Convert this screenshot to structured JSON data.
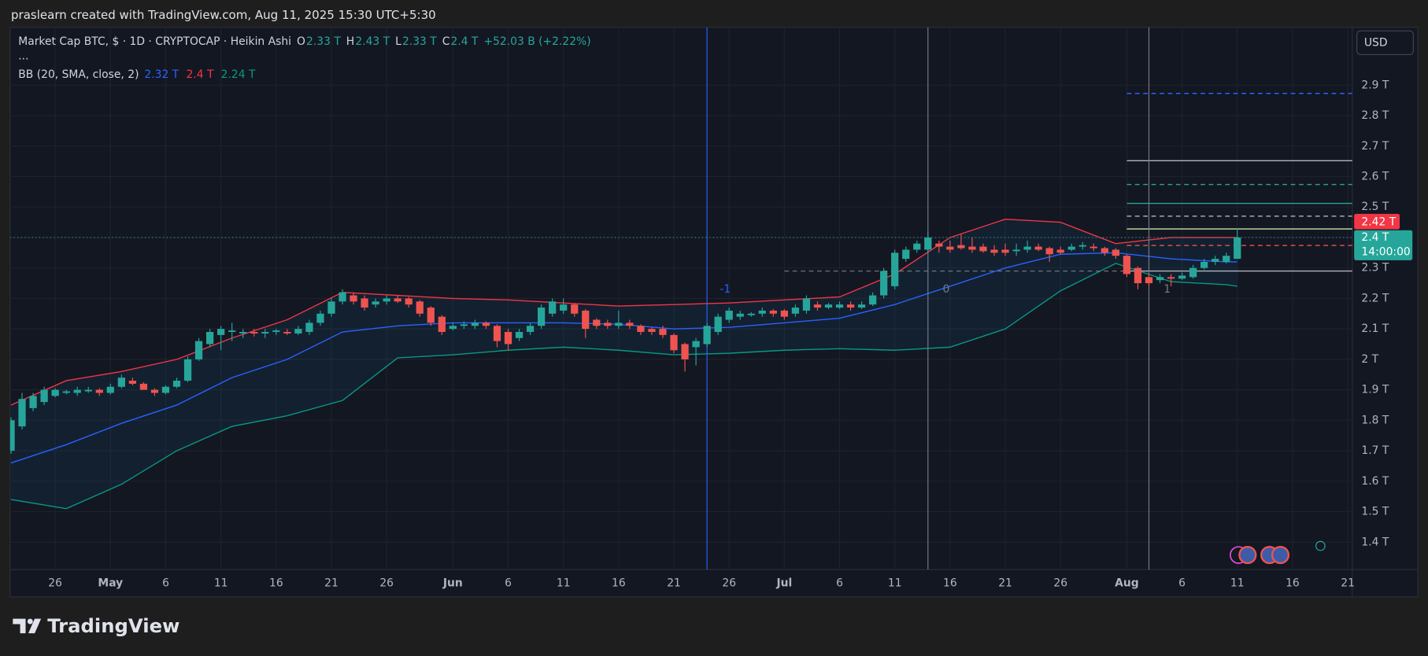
{
  "header": "praslearn created with TradingView.com, Aug 11, 2025 15:30 UTC+5:30",
  "brand": "TradingView",
  "currency": "USD",
  "chart_data": {
    "type": "candlestick",
    "legend": {
      "symbol": "Market Cap BTC, $ · 1D · CRYPTOCAP · Heikin Ashi",
      "items": [
        {
          "key": "O",
          "value": 2.33,
          "label": "2.33 T"
        },
        {
          "key": "H",
          "value": 2.43,
          "label": "2.43 T"
        },
        {
          "key": "L",
          "value": 2.33,
          "label": "2.33 T"
        },
        {
          "key": "C",
          "value": 2.4,
          "label": "2.4 T"
        }
      ],
      "change": "+52.03 B (+2.22%)",
      "more": "..."
    },
    "up_color": "#26a69a",
    "down_color": "#ef5350",
    "x": [
      "2025-04-22",
      "2025-04-23",
      "2025-04-24",
      "2025-04-25",
      "2025-04-26",
      "2025-04-27",
      "2025-04-28",
      "2025-04-29",
      "2025-04-30",
      "2025-05-01",
      "2025-05-02",
      "2025-05-03",
      "2025-05-04",
      "2025-05-05",
      "2025-05-06",
      "2025-05-07",
      "2025-05-08",
      "2025-05-09",
      "2025-05-10",
      "2025-05-11",
      "2025-05-12",
      "2025-05-13",
      "2025-05-14",
      "2025-05-15",
      "2025-05-16",
      "2025-05-17",
      "2025-05-18",
      "2025-05-19",
      "2025-05-20",
      "2025-05-21",
      "2025-05-22",
      "2025-05-23",
      "2025-05-24",
      "2025-05-25",
      "2025-05-26",
      "2025-05-27",
      "2025-05-28",
      "2025-05-29",
      "2025-05-30",
      "2025-05-31",
      "2025-06-01",
      "2025-06-02",
      "2025-06-03",
      "2025-06-04",
      "2025-06-05",
      "2025-06-06",
      "2025-06-07",
      "2025-06-08",
      "2025-06-09",
      "2025-06-10",
      "2025-06-11",
      "2025-06-12",
      "2025-06-13",
      "2025-06-14",
      "2025-06-15",
      "2025-06-16",
      "2025-06-17",
      "2025-06-18",
      "2025-06-19",
      "2025-06-20",
      "2025-06-21",
      "2025-06-22",
      "2025-06-23",
      "2025-06-24",
      "2025-06-25",
      "2025-06-26",
      "2025-06-27",
      "2025-06-28",
      "2025-06-29",
      "2025-06-30",
      "2025-07-01",
      "2025-07-02",
      "2025-07-03",
      "2025-07-04",
      "2025-07-05",
      "2025-07-06",
      "2025-07-07",
      "2025-07-08",
      "2025-07-09",
      "2025-07-10",
      "2025-07-11",
      "2025-07-12",
      "2025-07-13",
      "2025-07-14",
      "2025-07-15",
      "2025-07-16",
      "2025-07-17",
      "2025-07-18",
      "2025-07-19",
      "2025-07-20",
      "2025-07-21",
      "2025-07-22",
      "2025-07-23",
      "2025-07-24",
      "2025-07-25",
      "2025-07-26",
      "2025-07-27",
      "2025-07-28",
      "2025-07-29",
      "2025-07-30",
      "2025-07-31",
      "2025-08-01",
      "2025-08-02",
      "2025-08-03",
      "2025-08-04",
      "2025-08-05",
      "2025-08-06",
      "2025-08-07",
      "2025-08-08",
      "2025-08-09",
      "2025-08-10",
      "2025-08-11"
    ],
    "open": [
      1.7,
      1.78,
      1.84,
      1.86,
      1.88,
      1.89,
      1.89,
      1.895,
      1.9,
      1.89,
      1.91,
      1.93,
      1.92,
      1.9,
      1.89,
      1.91,
      1.93,
      2.0,
      2.05,
      2.08,
      2.09,
      2.085,
      2.09,
      2.085,
      2.09,
      2.09,
      2.085,
      2.09,
      2.12,
      2.15,
      2.19,
      2.21,
      2.2,
      2.18,
      2.19,
      2.2,
      2.2,
      2.19,
      2.17,
      2.14,
      2.1,
      2.11,
      2.11,
      2.12,
      2.11,
      2.09,
      2.07,
      2.09,
      2.11,
      2.15,
      2.16,
      2.18,
      2.16,
      2.13,
      2.12,
      2.11,
      2.12,
      2.11,
      2.1,
      2.1,
      2.08,
      2.05,
      2.04,
      2.05,
      2.09,
      2.13,
      2.14,
      2.145,
      2.15,
      2.16,
      2.16,
      2.15,
      2.16,
      2.18,
      2.17,
      2.17,
      2.18,
      2.17,
      2.18,
      2.21,
      2.24,
      2.33,
      2.36,
      2.36,
      2.38,
      2.37,
      2.375,
      2.37,
      2.37,
      2.36,
      2.36,
      2.355,
      2.36,
      2.37,
      2.365,
      2.36,
      2.36,
      2.37,
      2.37,
      2.365,
      2.36,
      2.34,
      2.3,
      2.27,
      2.26,
      2.27,
      2.265,
      2.27,
      2.3,
      2.32,
      2.32,
      2.33
    ],
    "high": [
      1.81,
      1.89,
      1.89,
      1.91,
      1.905,
      1.9,
      1.91,
      1.91,
      1.905,
      1.92,
      1.95,
      1.94,
      1.925,
      1.905,
      1.915,
      1.94,
      2.01,
      2.07,
      2.1,
      2.11,
      2.12,
      2.1,
      2.1,
      2.1,
      2.1,
      2.1,
      2.11,
      2.13,
      2.16,
      2.2,
      2.23,
      2.22,
      2.21,
      2.2,
      2.21,
      2.21,
      2.205,
      2.195,
      2.175,
      2.145,
      2.12,
      2.125,
      2.13,
      2.125,
      2.115,
      2.1,
      2.1,
      2.12,
      2.18,
      2.2,
      2.2,
      2.185,
      2.165,
      2.135,
      2.13,
      2.16,
      2.13,
      2.115,
      2.105,
      2.11,
      2.085,
      2.055,
      2.07,
      2.12,
      2.15,
      2.17,
      2.16,
      2.155,
      2.17,
      2.165,
      2.165,
      2.18,
      2.21,
      2.19,
      2.185,
      2.19,
      2.19,
      2.19,
      2.22,
      2.3,
      2.36,
      2.37,
      2.39,
      2.42,
      2.39,
      2.39,
      2.41,
      2.4,
      2.38,
      2.375,
      2.38,
      2.38,
      2.39,
      2.38,
      2.37,
      2.37,
      2.38,
      2.385,
      2.38,
      2.37,
      2.365,
      2.345,
      2.305,
      2.28,
      2.28,
      2.28,
      2.285,
      2.31,
      2.33,
      2.34,
      2.35,
      2.43
    ],
    "low": [
      1.69,
      1.77,
      1.83,
      1.85,
      1.875,
      1.885,
      1.88,
      1.89,
      1.88,
      1.885,
      1.905,
      1.915,
      1.9,
      1.88,
      1.885,
      1.905,
      1.925,
      1.995,
      2.04,
      2.03,
      2.06,
      2.07,
      2.075,
      2.07,
      2.08,
      2.08,
      2.08,
      2.08,
      2.11,
      2.14,
      2.18,
      2.18,
      2.16,
      2.17,
      2.18,
      2.185,
      2.17,
      2.14,
      2.11,
      2.08,
      2.095,
      2.1,
      2.1,
      2.1,
      2.04,
      2.03,
      2.06,
      2.08,
      2.1,
      2.14,
      2.15,
      2.14,
      2.07,
      2.1,
      2.1,
      2.1,
      2.1,
      2.08,
      2.08,
      2.07,
      2.02,
      1.96,
      1.98,
      2.04,
      2.08,
      2.12,
      2.13,
      2.14,
      2.14,
      2.14,
      2.13,
      2.14,
      2.15,
      2.16,
      2.165,
      2.165,
      2.16,
      2.165,
      2.175,
      2.2,
      2.23,
      2.32,
      2.35,
      2.35,
      2.35,
      2.35,
      2.36,
      2.35,
      2.35,
      2.34,
      2.34,
      2.34,
      2.35,
      2.355,
      2.32,
      2.345,
      2.355,
      2.36,
      2.355,
      2.34,
      2.33,
      2.27,
      2.23,
      2.24,
      2.25,
      2.24,
      2.26,
      2.265,
      2.295,
      2.31,
      2.315,
      2.33
    ],
    "close": [
      1.8,
      1.87,
      1.88,
      1.9,
      1.9,
      1.895,
      1.9,
      1.9,
      1.89,
      1.91,
      1.94,
      1.92,
      1.9,
      1.89,
      1.91,
      1.93,
      2.0,
      2.06,
      2.09,
      2.1,
      2.095,
      2.09,
      2.085,
      2.09,
      2.095,
      2.085,
      2.1,
      2.12,
      2.15,
      2.19,
      2.22,
      2.19,
      2.17,
      2.19,
      2.2,
      2.19,
      2.18,
      2.15,
      2.12,
      2.09,
      2.11,
      2.115,
      2.12,
      2.11,
      2.06,
      2.05,
      2.09,
      2.11,
      2.17,
      2.19,
      2.18,
      2.15,
      2.1,
      2.11,
      2.11,
      2.12,
      2.11,
      2.09,
      2.09,
      2.08,
      2.03,
      2.0,
      2.06,
      2.11,
      2.14,
      2.16,
      2.15,
      2.15,
      2.16,
      2.15,
      2.14,
      2.17,
      2.2,
      2.17,
      2.18,
      2.18,
      2.17,
      2.18,
      2.21,
      2.29,
      2.35,
      2.36,
      2.38,
      2.4,
      2.37,
      2.36,
      2.365,
      2.36,
      2.355,
      2.35,
      2.35,
      2.36,
      2.37,
      2.36,
      2.345,
      2.35,
      2.37,
      2.375,
      2.365,
      2.35,
      2.34,
      2.28,
      2.25,
      2.25,
      2.27,
      2.265,
      2.275,
      2.3,
      2.32,
      2.33,
      2.34,
      2.4
    ],
    "bollinger": {
      "name": "BB (20, SMA, close, 2)",
      "legend_values": [
        {
          "value": 2.32,
          "label": "2.32 T",
          "color": "#2962ff"
        },
        {
          "value": 2.4,
          "label": "2.4 T",
          "color": "#f23645"
        },
        {
          "value": 2.24,
          "label": "2.24 T",
          "color": "#089981"
        }
      ],
      "x": [
        "2025-04-22",
        "2025-04-27",
        "2025-05-02",
        "2025-05-07",
        "2025-05-12",
        "2025-05-17",
        "2025-05-22",
        "2025-05-27",
        "2025-06-01",
        "2025-06-06",
        "2025-06-11",
        "2025-06-16",
        "2025-06-21",
        "2025-06-26",
        "2025-07-01",
        "2025-07-06",
        "2025-07-11",
        "2025-07-16",
        "2025-07-21",
        "2025-07-26",
        "2025-07-31",
        "2025-08-05",
        "2025-08-10",
        "2025-08-11"
      ],
      "series": [
        {
          "color": "#f23645",
          "values": [
            1.85,
            1.93,
            1.96,
            2.0,
            2.07,
            2.13,
            2.22,
            2.21,
            2.2,
            2.195,
            2.185,
            2.175,
            2.18,
            2.185,
            2.195,
            2.205,
            2.28,
            2.4,
            2.46,
            2.45,
            2.38,
            2.4,
            2.4,
            2.4
          ]
        },
        {
          "color": "#2962ff",
          "values": [
            1.66,
            1.72,
            1.79,
            1.85,
            1.94,
            2.0,
            2.09,
            2.11,
            2.12,
            2.12,
            2.12,
            2.115,
            2.1,
            2.105,
            2.12,
            2.135,
            2.18,
            2.24,
            2.3,
            2.345,
            2.35,
            2.33,
            2.32,
            2.32
          ]
        },
        {
          "color": "#089981",
          "values": [
            1.54,
            1.51,
            1.59,
            1.7,
            1.78,
            1.815,
            1.865,
            2.005,
            2.015,
            2.03,
            2.04,
            2.03,
            2.015,
            2.02,
            2.03,
            2.035,
            2.03,
            2.04,
            2.1,
            2.225,
            2.315,
            2.255,
            2.245,
            2.24
          ]
        }
      ]
    },
    "fib_levels": {
      "from": "2025-08-01",
      "levels": [
        {
          "value": 2.873,
          "color": "#2962ff",
          "dashed": true
        },
        {
          "value": 2.652,
          "color": "#b2b5be",
          "dashed": false
        },
        {
          "value": 2.574,
          "color": "#26a69a",
          "dashed": true
        },
        {
          "value": 2.512,
          "color": "#26a69a",
          "dashed": false
        },
        {
          "value": 2.47,
          "color": "#b2b5be",
          "dashed": true
        },
        {
          "value": 2.428,
          "color": "#c8e6a0",
          "dashed": false
        },
        {
          "value": 2.374,
          "color": "#ef5350",
          "dashed": true
        },
        {
          "value": 2.29,
          "color": "#b2b5be",
          "dashed": false
        }
      ]
    },
    "guide_line": {
      "from": "2025-07-01",
      "to": "2025-08-01",
      "value": 2.29
    },
    "time_zones": [
      {
        "x": "2025-06-24",
        "label": "-1",
        "color": "#2962ff"
      },
      {
        "x": "2025-07-14",
        "label": "0",
        "color": "#787b86"
      },
      {
        "x": "2025-08-03",
        "label": "1",
        "color": "#787b86"
      }
    ],
    "price_markers": [
      {
        "value": 2.42,
        "label": "2.42 T",
        "color": "#f23645"
      },
      {
        "value": 2.4,
        "label": "2.4 T",
        "countdown": "14:00:00",
        "color": "#26a69a"
      }
    ],
    "xlim": [
      "2025-04-22",
      "2025-08-21"
    ],
    "ylim": [
      1.31,
      3.09
    ],
    "yticks": [
      {
        "value": 1.4,
        "label": "1.4 T"
      },
      {
        "value": 1.5,
        "label": "1.5 T"
      },
      {
        "value": 1.6,
        "label": "1.6 T"
      },
      {
        "value": 1.7,
        "label": "1.7 T"
      },
      {
        "value": 1.8,
        "label": "1.8 T"
      },
      {
        "value": 1.9,
        "label": "1.9 T"
      },
      {
        "value": 2,
        "label": "2 T"
      },
      {
        "value": 2.1,
        "label": "2.1 T"
      },
      {
        "value": 2.2,
        "label": "2.2 T"
      },
      {
        "value": 2.3,
        "label": "2.3 T"
      },
      {
        "value": 2.4,
        "label": "2.4 T"
      },
      {
        "value": 2.5,
        "label": "2.5 T"
      },
      {
        "value": 2.6,
        "label": "2.6 T"
      },
      {
        "value": 2.7,
        "label": "2.7 T"
      },
      {
        "value": 2.8,
        "label": "2.8 T"
      },
      {
        "value": 2.9,
        "label": "2.9 T"
      }
    ],
    "xticks": [
      {
        "value": "2025-04-26",
        "label": "26"
      },
      {
        "value": "2025-05-01",
        "label": "May",
        "month": true
      },
      {
        "value": "2025-05-06",
        "label": "6"
      },
      {
        "value": "2025-05-11",
        "label": "11"
      },
      {
        "value": "2025-05-16",
        "label": "16"
      },
      {
        "value": "2025-05-21",
        "label": "21"
      },
      {
        "value": "2025-05-26",
        "label": "26"
      },
      {
        "value": "2025-06-01",
        "label": "Jun",
        "month": true
      },
      {
        "value": "2025-06-06",
        "label": "6"
      },
      {
        "value": "2025-06-11",
        "label": "11"
      },
      {
        "value": "2025-06-16",
        "label": "16"
      },
      {
        "value": "2025-06-21",
        "label": "21"
      },
      {
        "value": "2025-06-26",
        "label": "26"
      },
      {
        "value": "2025-07-01",
        "label": "Jul",
        "month": true
      },
      {
        "value": "2025-07-06",
        "label": "6"
      },
      {
        "value": "2025-07-11",
        "label": "11"
      },
      {
        "value": "2025-07-16",
        "label": "16"
      },
      {
        "value": "2025-07-21",
        "label": "21"
      },
      {
        "value": "2025-07-26",
        "label": "26"
      },
      {
        "value": "2025-08-01",
        "label": "Aug",
        "month": true
      },
      {
        "value": "2025-08-06",
        "label": "6"
      },
      {
        "value": "2025-08-11",
        "label": "11"
      },
      {
        "value": "2025-08-16",
        "label": "16"
      },
      {
        "value": "2025-08-21",
        "label": "21"
      }
    ],
    "grid": true
  }
}
